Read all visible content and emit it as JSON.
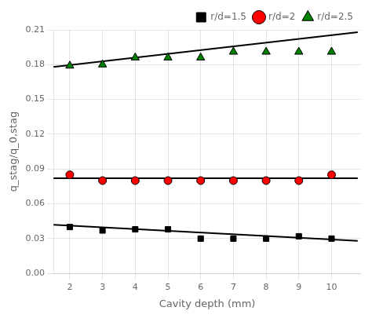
{
  "chart_data": {
    "type": "scatter",
    "xlabel": "Cavity depth (mm)",
    "ylabel": "q_stag/q_0,stag",
    "series": [
      {
        "name": "r/d=1.5",
        "type": "scatter",
        "color": "black",
        "marker": "square",
        "x": [
          2,
          3,
          4,
          5,
          6,
          7,
          8,
          9,
          10
        ],
        "values": [
          0.04,
          0.037,
          0.038,
          0.038,
          0.03,
          0.03,
          0.03,
          0.032,
          0.03
        ]
      },
      {
        "name": "r/d=2",
        "type": "scatter",
        "color": "red",
        "marker": "circle",
        "x": [
          2,
          3,
          4,
          5,
          6,
          7,
          8,
          9,
          10
        ],
        "values": [
          0.085,
          0.08,
          0.08,
          0.08,
          0.08,
          0.08,
          0.08,
          0.08,
          0.085
        ]
      },
      {
        "name": "r/d=2.5",
        "type": "scatter",
        "color": "green",
        "marker": "triangle",
        "x": [
          2,
          3,
          4,
          5,
          6,
          7,
          8,
          9,
          10
        ],
        "values": [
          0.179,
          0.18,
          0.186,
          0.186,
          0.186,
          0.191,
          0.191,
          0.191,
          0.191
        ]
      },
      {
        "type": "line",
        "color": "black",
        "x": [
          1.5,
          10.8
        ],
        "values": [
          0.042,
          0.028
        ]
      },
      {
        "type": "line",
        "color": "black",
        "x": [
          1.5,
          10.8
        ],
        "values": [
          0.082,
          0.082
        ]
      },
      {
        "type": "line",
        "color": "black",
        "x": [
          1.5,
          10.8
        ],
        "values": [
          0.178,
          0.208
        ]
      }
    ],
    "xlim": [
      1.5,
      10.9
    ],
    "xticks": [
      2,
      3,
      4,
      5,
      6,
      7,
      8,
      9,
      10
    ],
    "ylim": [
      0,
      0.21
    ],
    "yticks": [
      {
        "value": 0,
        "label": "0.00"
      },
      0.03,
      0.06,
      0.09,
      0.12,
      0.15,
      0.18,
      0.21
    ],
    "grid": true,
    "legend": "upper right"
  }
}
